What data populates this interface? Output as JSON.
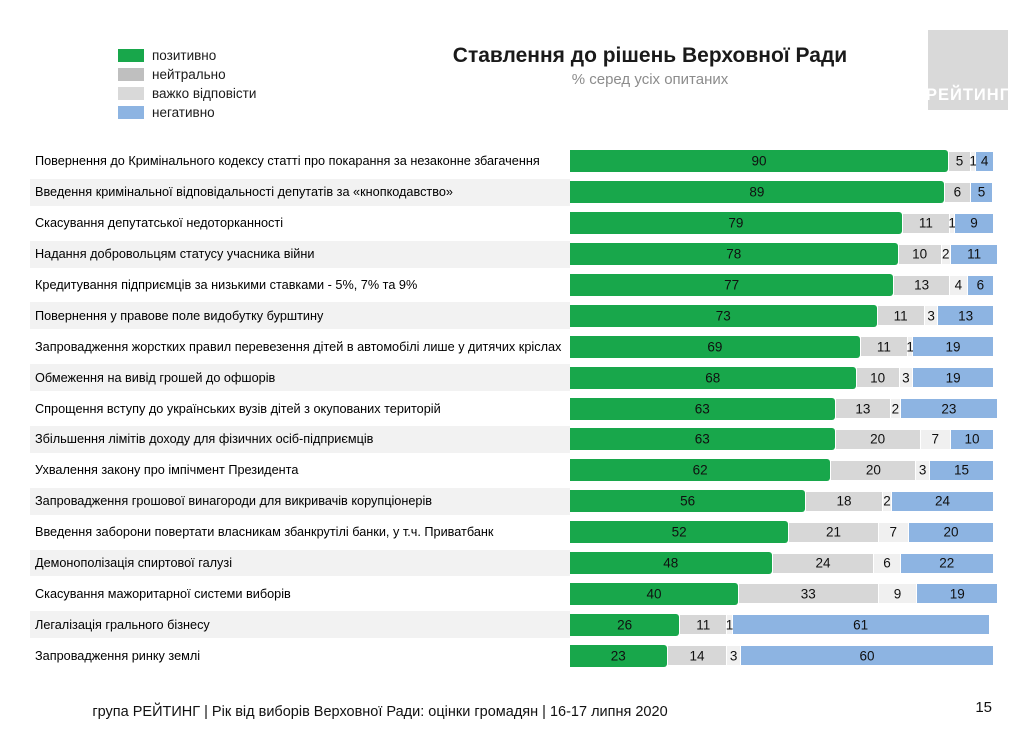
{
  "chart_data": {
    "type": "bar",
    "orientation": "horizontal",
    "stacked": true,
    "units": "%",
    "title": "Ставлення до рішень Верховної Ради",
    "subtitle": "% серед усіх опитаних",
    "xlim": [
      0,
      100
    ],
    "legend_position": "top-left",
    "axes_shown": false,
    "categories": [
      "Повернення до Кримінального кодексу статті про покарання за незаконне збагачення",
      "Введення кримінальної відповідальності депутатів за «кнопкодавство»",
      "Скасування депутатської недоторканності",
      "Надання добровольцям статусу учасника війни",
      "Кредитування підприємців за низькими ставками - 5%, 7% та 9%",
      "Повернення у правове поле видобутку бурштину",
      "Запровадження жорстких правил перевезення дітей в автомобілі лише у дитячих кріслах",
      "Обмеження на вивід грошей до офшорів",
      "Спрощення вступу до українських вузів дітей з окупованих територій",
      "Збільшення лімітів доходу для фізичних осіб-підприємців",
      "Ухвалення закону про імпічмент Президента",
      "Запровадження грошової винагороди для викривачів корупціонерів",
      "Введення заборони повертати власникам збанкрутілі банки, у т.ч. Приватбанк",
      "Демонополізація спиртової галузі",
      "Скасування мажоритарної системи виборів",
      "Легалізація грального бізнесу",
      "Запровадження ринку землі"
    ],
    "series": [
      {
        "name": "позитивно",
        "color": "#18a74b",
        "legend_swatch": "#18a74b",
        "values": [
          90,
          89,
          79,
          78,
          77,
          73,
          69,
          68,
          63,
          63,
          62,
          56,
          52,
          48,
          40,
          26,
          23
        ]
      },
      {
        "name": "нейтрально",
        "color": "#d7d7d7",
        "legend_swatch": "#bfbfbf",
        "values": [
          5,
          6,
          11,
          10,
          13,
          11,
          11,
          10,
          13,
          20,
          20,
          18,
          21,
          24,
          33,
          11,
          14
        ]
      },
      {
        "name": "важко відповісти",
        "color": "#f0f0f0",
        "legend_swatch": "#d9d9d9",
        "values": [
          1,
          0,
          1,
          2,
          4,
          3,
          1,
          3,
          2,
          7,
          3,
          2,
          7,
          6,
          9,
          1,
          3
        ]
      },
      {
        "name": "негативно",
        "color": "#8db4e2",
        "legend_swatch": "#8db4e2",
        "values": [
          4,
          5,
          9,
          11,
          6,
          13,
          19,
          19,
          23,
          10,
          15,
          24,
          20,
          22,
          19,
          61,
          60
        ]
      }
    ]
  },
  "logo": {
    "text": "РЕЙТИНГ",
    "background": "#d9d9d9"
  },
  "footer": {
    "text": "група РЕЙТИНГ | Рік від виборів Верховної Ради: оцінки громадян | 16-17 липня 2020",
    "page_number": "15"
  }
}
